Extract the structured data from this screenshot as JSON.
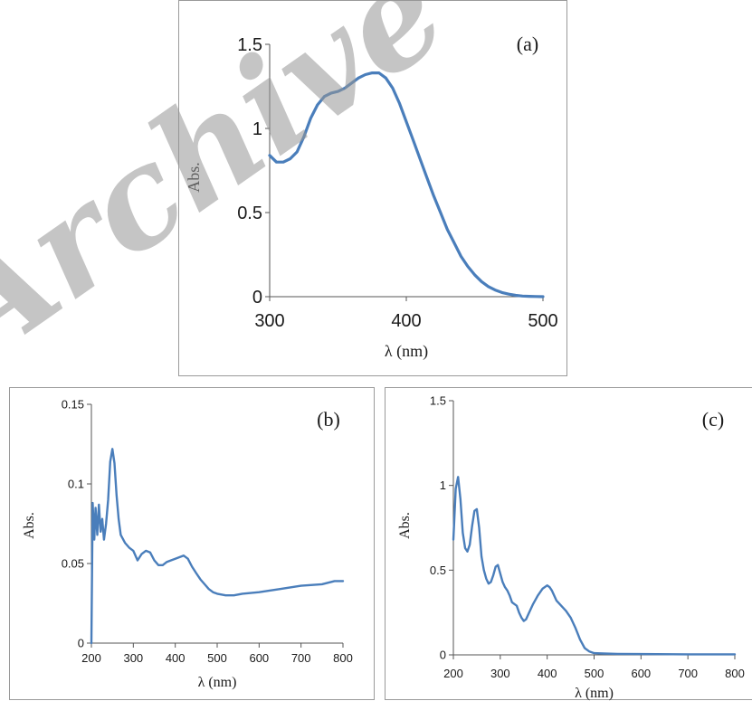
{
  "watermark": "Archive of SID",
  "chart_data": [
    {
      "type": "line",
      "panel_label": "(a)",
      "xlabel": "λ (nm)",
      "ylabel": "Abs.",
      "xlim": [
        300,
        500
      ],
      "ylim": [
        0,
        1.5
      ],
      "xticks": [
        300,
        400,
        500
      ],
      "yticks": [
        0,
        0.5,
        1,
        1.5
      ],
      "ytick_labels": [
        "0",
        "0.5",
        "1",
        "1.5"
      ],
      "color": "#4a7ebb",
      "series": [
        {
          "x": [
            300,
            305,
            310,
            315,
            320,
            325,
            330,
            335,
            340,
            345,
            350,
            355,
            360,
            365,
            370,
            375,
            380,
            385,
            390,
            395,
            400,
            405,
            410,
            415,
            420,
            425,
            430,
            435,
            440,
            445,
            450,
            455,
            460,
            465,
            470,
            475,
            480,
            485,
            490,
            495,
            500
          ],
          "y": [
            0.84,
            0.8,
            0.8,
            0.82,
            0.86,
            0.95,
            1.06,
            1.14,
            1.19,
            1.21,
            1.22,
            1.24,
            1.27,
            1.3,
            1.32,
            1.33,
            1.33,
            1.3,
            1.24,
            1.15,
            1.04,
            0.93,
            0.82,
            0.71,
            0.6,
            0.5,
            0.4,
            0.32,
            0.24,
            0.18,
            0.13,
            0.09,
            0.06,
            0.04,
            0.025,
            0.015,
            0.008,
            0.004,
            0.002,
            0.001,
            0.0
          ]
        }
      ]
    },
    {
      "type": "line",
      "panel_label": "(b)",
      "xlabel": "λ (nm)",
      "ylabel": "Abs.",
      "xlim": [
        200,
        800
      ],
      "ylim": [
        0,
        0.15
      ],
      "xticks": [
        200,
        300,
        400,
        500,
        600,
        700,
        800
      ],
      "yticks": [
        0,
        0.05,
        0.1,
        0.15
      ],
      "ytick_labels": [
        "0",
        "0.05",
        "0.1",
        "0.15"
      ],
      "color": "#4a7ebb",
      "series": [
        {
          "x": [
            200,
            203,
            207,
            210,
            214,
            218,
            222,
            226,
            230,
            235,
            240,
            245,
            250,
            255,
            260,
            265,
            270,
            280,
            290,
            300,
            310,
            320,
            330,
            340,
            350,
            360,
            370,
            380,
            390,
            400,
            410,
            420,
            430,
            440,
            450,
            460,
            470,
            480,
            490,
            500,
            520,
            540,
            560,
            600,
            650,
            700,
            750,
            780,
            800
          ],
          "y": [
            0.0,
            0.088,
            0.065,
            0.085,
            0.068,
            0.087,
            0.07,
            0.078,
            0.065,
            0.075,
            0.09,
            0.114,
            0.122,
            0.113,
            0.093,
            0.078,
            0.068,
            0.063,
            0.06,
            0.058,
            0.052,
            0.056,
            0.058,
            0.057,
            0.052,
            0.049,
            0.049,
            0.051,
            0.052,
            0.053,
            0.054,
            0.055,
            0.053,
            0.048,
            0.044,
            0.04,
            0.037,
            0.034,
            0.032,
            0.031,
            0.03,
            0.03,
            0.031,
            0.032,
            0.034,
            0.036,
            0.037,
            0.039,
            0.039
          ]
        }
      ]
    },
    {
      "type": "line",
      "panel_label": "(c)",
      "xlabel": "λ (nm)",
      "ylabel": "Abs.",
      "xlim": [
        200,
        800
      ],
      "ylim": [
        0,
        1.5
      ],
      "xticks": [
        200,
        300,
        400,
        500,
        600,
        700,
        800
      ],
      "yticks": [
        0,
        0.5,
        1,
        1.5
      ],
      "ytick_labels": [
        "0",
        "0.5",
        "1",
        "1.5"
      ],
      "color": "#4a7ebb",
      "series": [
        {
          "x": [
            200,
            205,
            210,
            215,
            220,
            225,
            230,
            235,
            240,
            245,
            250,
            255,
            260,
            265,
            270,
            275,
            280,
            285,
            290,
            295,
            300,
            305,
            310,
            315,
            320,
            325,
            330,
            335,
            340,
            345,
            350,
            355,
            360,
            370,
            380,
            390,
            400,
            405,
            410,
            420,
            430,
            440,
            450,
            460,
            470,
            480,
            490,
            500,
            520,
            550,
            600,
            700,
            800
          ],
          "y": [
            0.68,
            0.98,
            1.05,
            0.92,
            0.72,
            0.63,
            0.61,
            0.65,
            0.76,
            0.85,
            0.86,
            0.75,
            0.58,
            0.5,
            0.45,
            0.42,
            0.43,
            0.47,
            0.52,
            0.53,
            0.48,
            0.43,
            0.4,
            0.38,
            0.35,
            0.31,
            0.3,
            0.29,
            0.25,
            0.22,
            0.2,
            0.21,
            0.24,
            0.3,
            0.35,
            0.39,
            0.41,
            0.4,
            0.38,
            0.32,
            0.29,
            0.26,
            0.22,
            0.16,
            0.09,
            0.04,
            0.02,
            0.01,
            0.008,
            0.006,
            0.005,
            0.003,
            0.003
          ]
        }
      ]
    }
  ]
}
